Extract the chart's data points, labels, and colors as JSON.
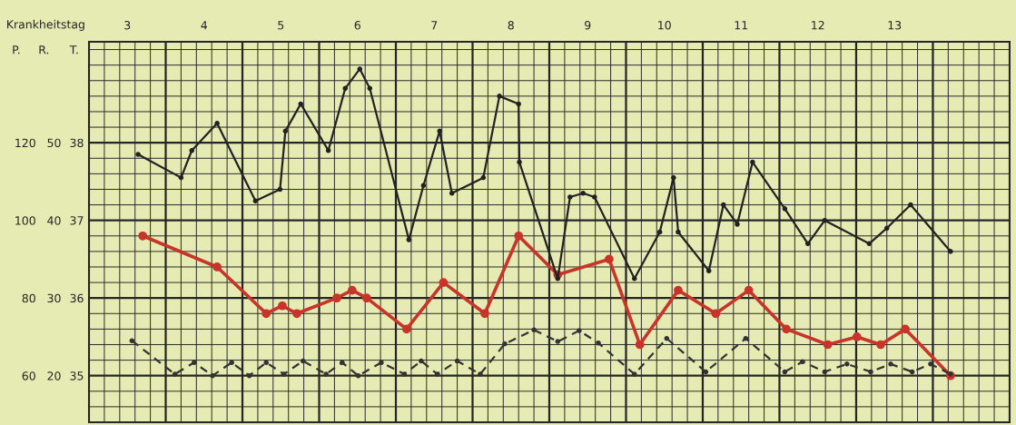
{
  "chart_data": {
    "type": "line",
    "xlabel": "Krankheitstag",
    "ylabel": "T.",
    "y2label": "P.",
    "y3label": "R.",
    "xlim": [
      3,
      15
    ],
    "xticks": [
      {
        "value": 3.5,
        "label": "3"
      },
      {
        "value": 4.5,
        "label": "4"
      },
      {
        "value": 5.5,
        "label": "5"
      },
      {
        "value": 6.5,
        "label": "6"
      },
      {
        "value": 7.5,
        "label": "7"
      },
      {
        "value": 8.5,
        "label": "8"
      },
      {
        "value": 9.5,
        "label": "9"
      },
      {
        "value": 10.5,
        "label": "10"
      },
      {
        "value": 11.5,
        "label": "11"
      },
      {
        "value": 12.5,
        "label": "12"
      },
      {
        "value": 13.5,
        "label": "13"
      }
    ],
    "ylim": [
      34.4,
      39.3
    ],
    "yticks": [
      35,
      36,
      37,
      38
    ],
    "y2lim": [
      48,
      146
    ],
    "y2ticks": [
      60,
      80,
      100,
      120
    ],
    "y3lim": [
      14,
      63
    ],
    "y3ticks": [
      20,
      30,
      40,
      50
    ],
    "grid": true,
    "marker": "circle",
    "series": [
      {
        "axis": "y2",
        "color": "#222222",
        "line_style": "solid",
        "x": [
          3.64,
          4.2,
          4.34,
          4.67,
          5.17,
          5.49,
          5.56,
          5.76,
          6.12,
          6.34,
          6.53,
          6.66,
          7.17,
          7.36,
          7.57,
          7.73,
          8.14,
          8.35,
          8.6,
          8.61,
          9.11,
          9.27,
          9.44,
          9.59,
          10.11,
          10.44,
          10.62,
          10.68,
          11.08,
          11.27,
          11.45,
          11.65,
          12.07,
          12.37,
          12.59,
          13.17,
          13.4,
          13.71,
          14.23
        ],
        "values": [
          117,
          111,
          118,
          125,
          105,
          108,
          123,
          130,
          118,
          134,
          139,
          134,
          95,
          109,
          123,
          107,
          111,
          132,
          130,
          115,
          85,
          106,
          107,
          106,
          85,
          97,
          111,
          97,
          87,
          104,
          99,
          115,
          103,
          94,
          100,
          94,
          98,
          104,
          92
        ]
      },
      {
        "axis": "y",
        "color": "#c8342a",
        "line_style": "solid",
        "x": [
          3.7,
          4.67,
          5.31,
          5.52,
          5.71,
          6.23,
          6.43,
          6.62,
          7.14,
          7.62,
          8.16,
          8.6,
          9.11,
          9.78,
          10.18,
          10.68,
          11.17,
          11.6,
          12.09,
          12.63,
          13.01,
          13.32,
          13.64,
          14.23
        ],
        "values": [
          36.8,
          36.4,
          35.8,
          35.9,
          35.8,
          36.0,
          36.1,
          36.0,
          35.6,
          36.2,
          35.8,
          36.8,
          36.3,
          36.5,
          35.4,
          36.1,
          35.8,
          36.1,
          35.6,
          35.4,
          35.5,
          35.4,
          35.6,
          35.0
        ]
      },
      {
        "axis": "y3",
        "color": "#333333",
        "line_style": "dashed",
        "x": [
          3.56,
          4.12,
          4.37,
          4.61,
          4.86,
          5.09,
          5.31,
          5.54,
          5.79,
          6.09,
          6.3,
          6.51,
          6.81,
          7.11,
          7.33,
          7.54,
          7.8,
          8.1,
          8.42,
          8.8,
          9.11,
          9.39,
          9.64,
          10.11,
          10.53,
          11.04,
          11.56,
          12.07,
          12.3,
          12.59,
          12.88,
          13.19,
          13.45,
          13.73,
          13.97,
          14.23
        ],
        "values": [
          24.5,
          20.2,
          21.7,
          20,
          21.7,
          20,
          21.7,
          20.2,
          21.9,
          20.2,
          21.7,
          20,
          21.7,
          20.2,
          21.9,
          20.2,
          21.9,
          20.2,
          24.1,
          25.9,
          24.4,
          25.8,
          24.2,
          20.2,
          24.8,
          20.5,
          24.8,
          20.5,
          21.8,
          20.5,
          21.5,
          20.5,
          21.5,
          20.5,
          21.5,
          20.2
        ]
      }
    ]
  }
}
